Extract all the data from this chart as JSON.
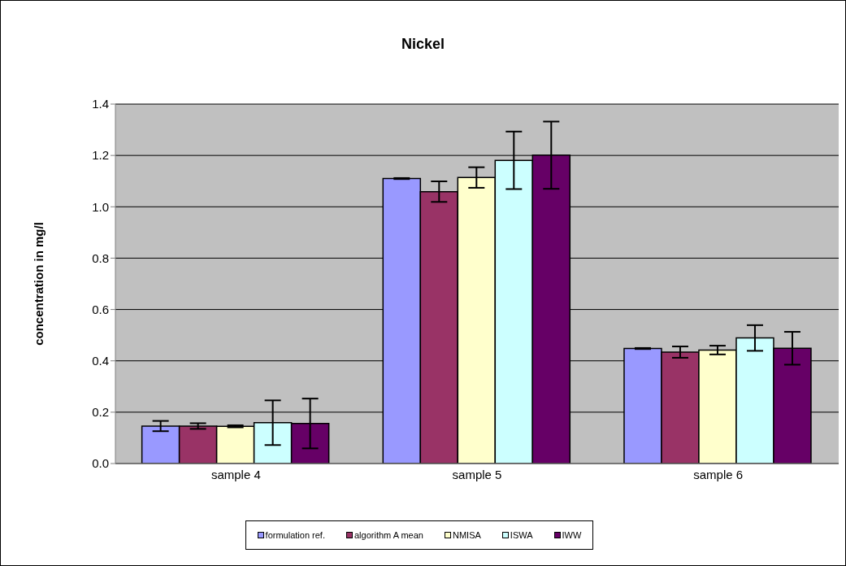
{
  "chart_data": {
    "type": "bar",
    "title": "Nickel",
    "ylabel": "concentration in mg/l",
    "categories": [
      "sample 4",
      "sample 5",
      "sample 6"
    ],
    "series": [
      {
        "name": "formulation ref.",
        "color": "#9999ff",
        "values": [
          0.146,
          1.11,
          0.448
        ],
        "errors": [
          0.02,
          0.002,
          0.002
        ]
      },
      {
        "name": "algorithm A mean",
        "color": "#993366",
        "values": [
          0.146,
          1.059,
          0.434
        ],
        "errors": [
          0.011,
          0.04,
          0.022
        ]
      },
      {
        "name": "NMISA",
        "color": "#ffffcc",
        "values": [
          0.145,
          1.114,
          0.442
        ],
        "errors": [
          0.004,
          0.04,
          0.017
        ]
      },
      {
        "name": "ISWA",
        "color": "#ccffff",
        "values": [
          0.159,
          1.181,
          0.489
        ],
        "errors": [
          0.087,
          0.112,
          0.05
        ]
      },
      {
        "name": "IWW",
        "color": "#660066",
        "values": [
          0.156,
          1.201,
          0.449
        ],
        "errors": [
          0.097,
          0.131,
          0.064
        ]
      }
    ],
    "ylim": [
      0,
      1.4
    ],
    "yticks": [
      {
        "value": 0,
        "label": "0.0"
      },
      {
        "value": 0.2,
        "label": "0.2"
      },
      {
        "value": 0.4,
        "label": "0.4"
      },
      {
        "value": 0.6,
        "label": "0.6"
      },
      {
        "value": 0.8,
        "label": "0.8"
      },
      {
        "value": 1,
        "label": "1.0"
      },
      {
        "value": 1.2,
        "label": "1.2"
      },
      {
        "value": 1.4,
        "label": "1.4"
      }
    ],
    "grid": "y",
    "legend": "bottom"
  }
}
